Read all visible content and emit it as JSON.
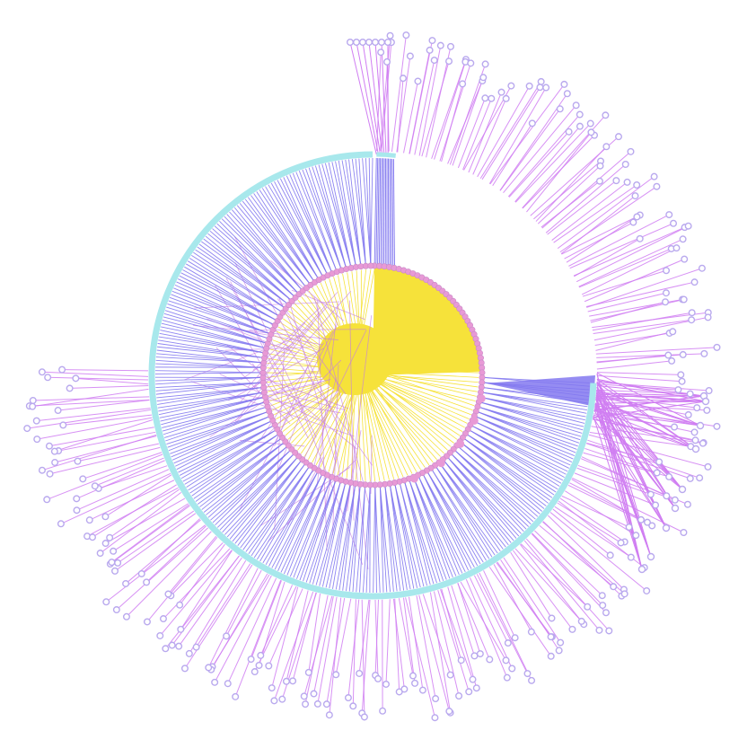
{
  "diagram": {
    "type": "radial-tree",
    "description_free": true,
    "root": "center",
    "rings": [
      {
        "level": 1,
        "name": "inner-ring",
        "node_count": 140
      },
      {
        "level": 2,
        "name": "middle-ring",
        "node_count": 300
      },
      {
        "level": 3,
        "name": "outer-ring",
        "node_count": 260
      }
    ],
    "colors": {
      "root_edges": "#f6e23a",
      "inner_nodes": "#e89ad6",
      "inner_edge_highlight": "#c57ae6",
      "middle_ring": "#a8e8ec",
      "middle_edges": "#8278f0",
      "outer_edges": "#d07ef2",
      "outer_nodes": "#b9a9ee",
      "background": "#ffffff"
    }
  }
}
